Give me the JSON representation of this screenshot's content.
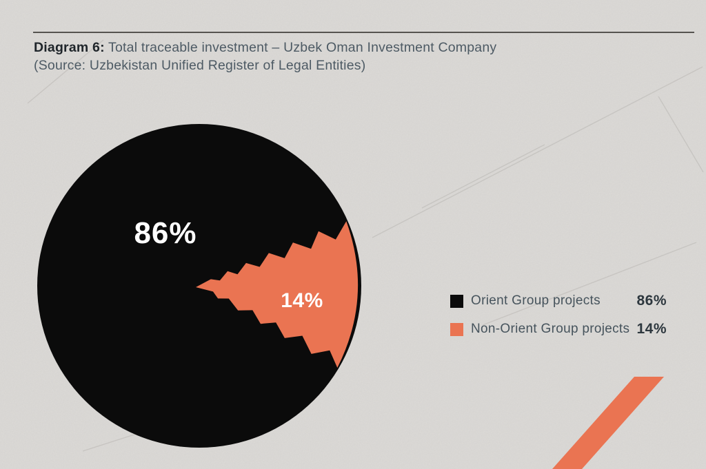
{
  "page": {
    "background_color": "#dcdad7",
    "rule_color": "#55534f",
    "accent_orange": "#EA7452",
    "black": "#0b0b0b"
  },
  "header": {
    "title_prefix": "Diagram 6:",
    "title_rest": " Total traceable investment – Uzbek Oman Investment Company",
    "source_line": "(Source: Uzbekistan Unified Register of Legal Entities)"
  },
  "chart_data": {
    "type": "pie",
    "title": "Total traceable investment – Uzbek Oman Investment Company",
    "source": "Uzbekistan Unified Register of Legal Entities",
    "legend_position": "right",
    "style": "torn-paper jagged wedge for minority slice",
    "slices": [
      {
        "label": "Orient Group projects",
        "value": 86,
        "display": "86%",
        "color": "#0b0b0b",
        "text_color": "#ffffff"
      },
      {
        "label": "Non-Orient Group projects",
        "value": 14,
        "display": "14%",
        "color": "#EA7452",
        "text_color": "#ffffff"
      }
    ]
  }
}
